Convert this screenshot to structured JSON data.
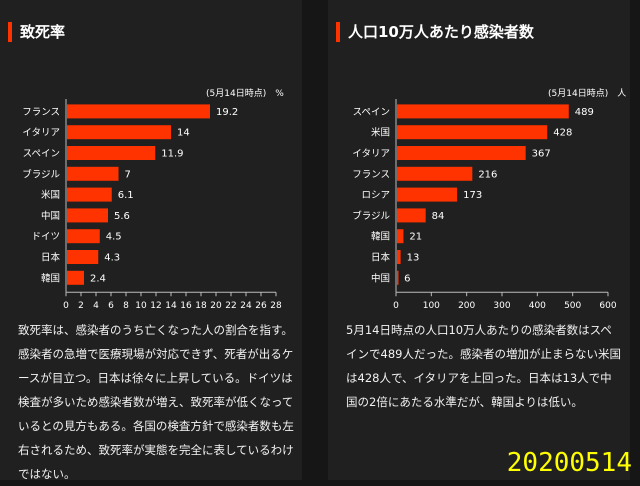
{
  "left": {
    "title": "致死率",
    "unit_note": "(5月14日時点)　%",
    "description": "致死率は、感染者のうち亡くなった人の割合を指す。感染者の急増で医療現場が対応できず、死者が出るケースが目立つ。日本は徐々に上昇している。ドイツは検査が多いため感染者数が増え、致死率が低くなっているとの見方もある。各国の検査方針で感染者数も左右されるため、致死率が実態を完全に表しているわけではない。"
  },
  "right": {
    "title": "人口10万人あたり感染者数",
    "unit_note": "(5月14日時点)　人",
    "description": "5月14日時点の人口10万人あたりの感染者数はスペインで489人だった。感染者の増加が止まらない米国は428人で、イタリアを上回った。日本は13人で中国の2倍にあたる水準だが、韓国よりは低い。"
  },
  "date_stamp": "20200514",
  "colors": {
    "bar": "#ff3300",
    "accent": "#ff3300",
    "stamp": "#ffff00"
  },
  "chart_data": [
    {
      "type": "bar",
      "orientation": "horizontal",
      "title": "致死率",
      "categories": [
        "フランス",
        "イタリア",
        "スペイン",
        "ブラジル",
        "米国",
        "中国",
        "ドイツ",
        "日本",
        "韓国"
      ],
      "values": [
        19.2,
        14,
        11.9,
        7,
        6.1,
        5.6,
        4.5,
        4.3,
        2.4
      ],
      "xlim": [
        0,
        28
      ],
      "xticks": [
        0,
        2,
        4,
        6,
        8,
        10,
        12,
        14,
        16,
        18,
        20,
        22,
        24,
        26,
        28
      ]
    },
    {
      "type": "bar",
      "orientation": "horizontal",
      "title": "人口10万人あたり感染者数",
      "categories": [
        "スペイン",
        "米国",
        "イタリア",
        "フランス",
        "ロシア",
        "ブラジル",
        "韓国",
        "日本",
        "中国"
      ],
      "values": [
        489,
        428,
        367,
        216,
        173,
        84,
        21,
        13,
        6
      ],
      "xlim": [
        0,
        600
      ],
      "xticks": [
        0,
        100,
        200,
        300,
        400,
        500,
        600
      ]
    }
  ]
}
